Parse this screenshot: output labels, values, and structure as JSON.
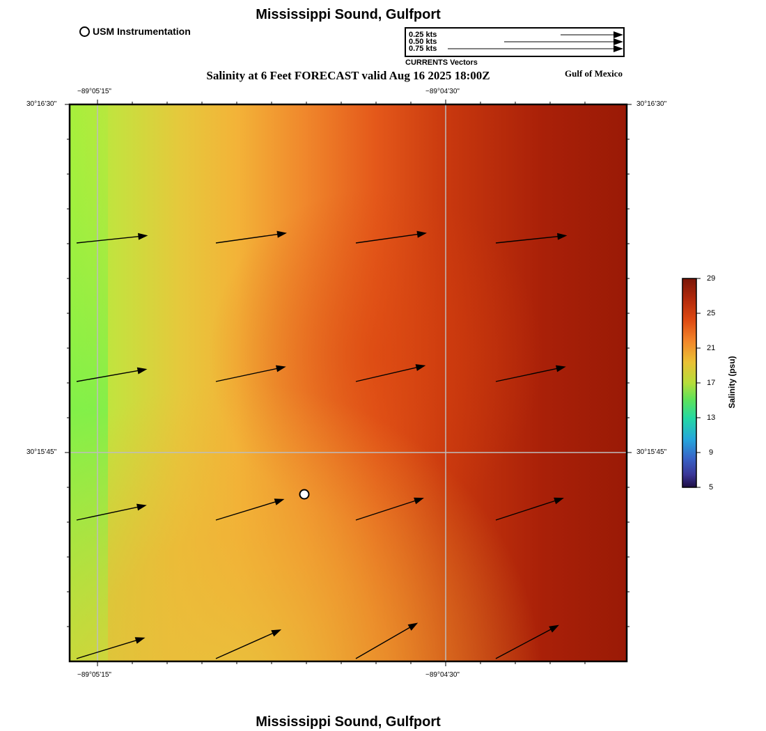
{
  "header": {
    "title": "Mississippi Sound, Gulfport",
    "subtitle": "Salinity at 6 Feet FORECAST valid Aug 16 2025 18:00Z",
    "region_label": "Gulf of Mexico",
    "footer_title": "Mississippi Sound, Gulfport"
  },
  "legend": {
    "station_label": "USM Instrumentation",
    "vector_caption": "CURRENTS Vectors",
    "vector_scale": [
      {
        "label": "0.25 kts",
        "speed": 0.25
      },
      {
        "label": "0.50 kts",
        "speed": 0.5
      },
      {
        "label": "0.75 kts",
        "speed": 0.75
      }
    ]
  },
  "axes": {
    "lon_labels": [
      "−89°05’15\"",
      "−89°04’30\""
    ],
    "lat_labels": [
      "30°16’30\"",
      "30°15’45\""
    ]
  },
  "colorbar": {
    "title": "Salinity (psu)",
    "min": 5,
    "max": 29,
    "ticks": [
      "29",
      "25",
      "21",
      "17",
      "13",
      "9",
      "5"
    ],
    "colors": [
      "#8a1a0a",
      "#c0300c",
      "#e24a10",
      "#f08a28",
      "#e9c036",
      "#b8dd3a",
      "#5fe05a",
      "#2fd6a8",
      "#2aa8d8",
      "#3a66c8",
      "#3a3a9a",
      "#22124a"
    ]
  },
  "station": {
    "name": "USM Instrumentation"
  },
  "currents": {
    "units": "kts",
    "vectors": [
      {
        "row": 0,
        "col": 0,
        "dir_deg": 84
      },
      {
        "row": 0,
        "col": 1,
        "dir_deg": 82
      },
      {
        "row": 0,
        "col": 2,
        "dir_deg": 82
      },
      {
        "row": 0,
        "col": 3,
        "dir_deg": 84
      },
      {
        "row": 1,
        "col": 0,
        "dir_deg": 80
      },
      {
        "row": 1,
        "col": 1,
        "dir_deg": 78
      },
      {
        "row": 1,
        "col": 2,
        "dir_deg": 77
      },
      {
        "row": 1,
        "col": 3,
        "dir_deg": 78
      },
      {
        "row": 2,
        "col": 0,
        "dir_deg": 78
      },
      {
        "row": 2,
        "col": 1,
        "dir_deg": 73
      },
      {
        "row": 2,
        "col": 2,
        "dir_deg": 72
      },
      {
        "row": 2,
        "col": 3,
        "dir_deg": 72
      },
      {
        "row": 3,
        "col": 0,
        "dir_deg": 73
      },
      {
        "row": 3,
        "col": 1,
        "dir_deg": 66
      },
      {
        "row": 3,
        "col": 2,
        "dir_deg": 60
      },
      {
        "row": 3,
        "col": 3,
        "dir_deg": 62
      }
    ]
  }
}
